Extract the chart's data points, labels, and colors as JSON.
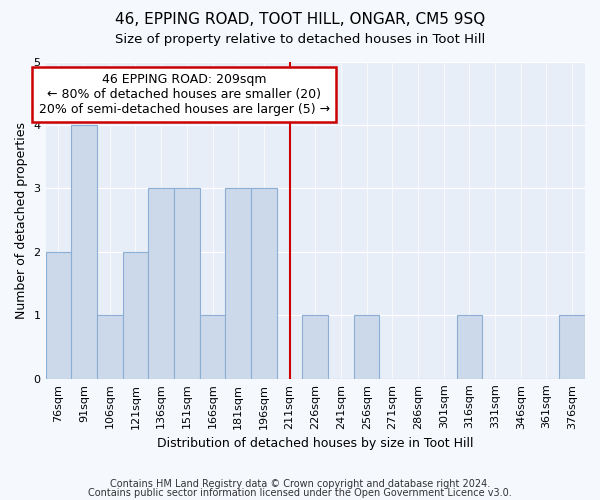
{
  "title1": "46, EPPING ROAD, TOOT HILL, ONGAR, CM5 9SQ",
  "title2": "Size of property relative to detached houses in Toot Hill",
  "xlabel": "Distribution of detached houses by size in Toot Hill",
  "ylabel": "Number of detached properties",
  "categories": [
    "76sqm",
    "91sqm",
    "106sqm",
    "121sqm",
    "136sqm",
    "151sqm",
    "166sqm",
    "181sqm",
    "196sqm",
    "211sqm",
    "226sqm",
    "241sqm",
    "256sqm",
    "271sqm",
    "286sqm",
    "301sqm",
    "316sqm",
    "331sqm",
    "346sqm",
    "361sqm",
    "376sqm"
  ],
  "values": [
    2,
    4,
    1,
    2,
    3,
    3,
    1,
    3,
    3,
    0,
    1,
    0,
    1,
    0,
    0,
    0,
    1,
    0,
    0,
    0,
    1
  ],
  "bar_color": "#ccd9ea",
  "bar_edge_color": "#8aaed4",
  "vline_x_index": 9,
  "vline_color": "#cc0000",
  "annotation_text": "46 EPPING ROAD: 209sqm\n← 80% of detached houses are smaller (20)\n20% of semi-detached houses are larger (5) →",
  "annotation_box_color": "white",
  "annotation_box_edge_color": "#cc0000",
  "ylim": [
    0,
    5
  ],
  "yticks": [
    0,
    1,
    2,
    3,
    4,
    5
  ],
  "footer1": "Contains HM Land Registry data © Crown copyright and database right 2024.",
  "footer2": "Contains public sector information licensed under the Open Government Licence v3.0.",
  "bg_color": "#f5f8fd",
  "plot_bg_color": "#e8eef8",
  "grid_color": "#ffffff",
  "title1_fontsize": 11,
  "title2_fontsize": 9.5,
  "xlabel_fontsize": 9,
  "ylabel_fontsize": 9,
  "tick_fontsize": 8,
  "footer_fontsize": 7,
  "annotation_fontsize": 9
}
